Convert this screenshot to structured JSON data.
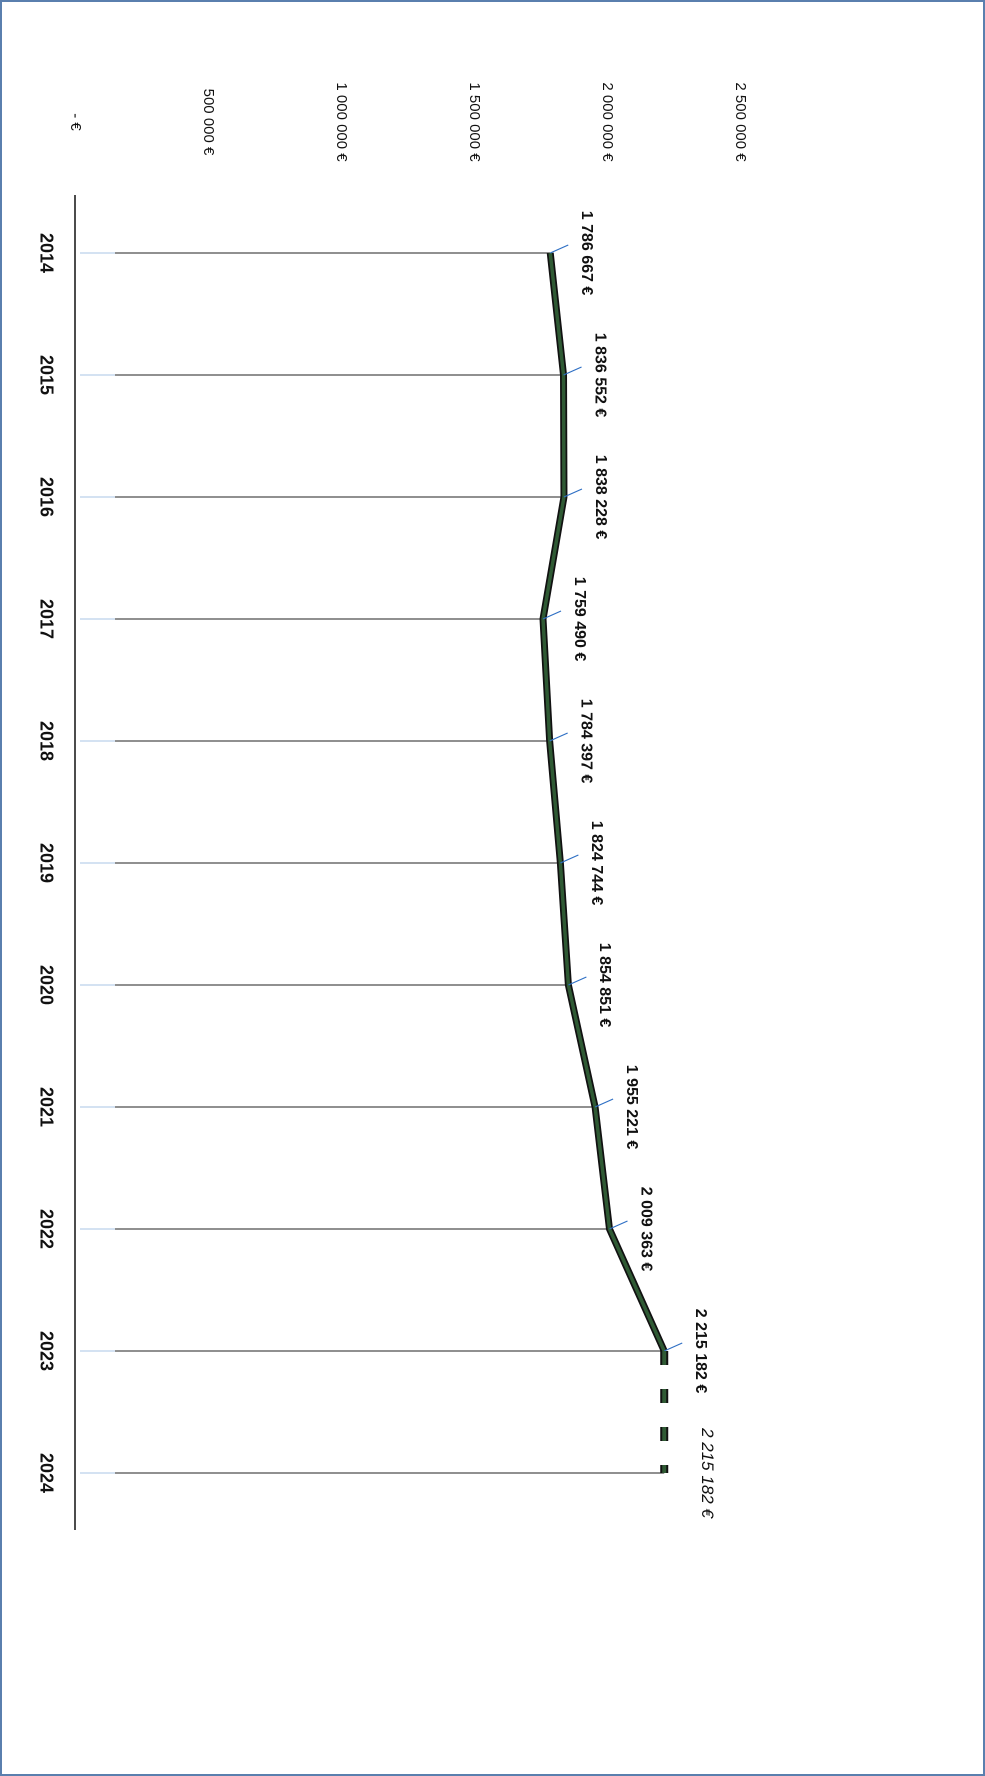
{
  "chart_data": {
    "type": "line",
    "categories": [
      "2014",
      "2015",
      "2016",
      "2017",
      "2018",
      "2019",
      "2020",
      "2021",
      "2022",
      "2023",
      "2024"
    ],
    "series": [
      {
        "color": "#2f5a34",
        "line_style": "solid",
        "values": [
          1786667,
          1836552,
          1838228,
          1759490,
          1784397,
          1824744,
          1854851,
          1955221,
          2009363,
          2215182,
          null
        ],
        "value_labels": [
          "1 786 667 €",
          "1 836 552 €",
          "1 838 228 €",
          "1 759 490 €",
          "1 784 397 €",
          "1 824 744 €",
          "1 854 851 €",
          "1 955 221 €",
          "2 009 363 €",
          "2 215 182 €",
          null
        ]
      },
      {
        "color": "#2f5a34",
        "line_style": "dashed",
        "values": [
          null,
          null,
          null,
          null,
          null,
          null,
          null,
          null,
          null,
          2215182,
          2215182
        ],
        "value_labels": [
          null,
          null,
          null,
          null,
          null,
          null,
          null,
          null,
          null,
          null,
          "2 215 182 €"
        ]
      }
    ],
    "ylim": [
      0,
      2500000
    ],
    "yticks": [
      {
        "value": 0,
        "label": "-  €"
      },
      {
        "value": 500000,
        "label": "500 000 €"
      },
      {
        "value": 1000000,
        "label": "1 000 000 €"
      },
      {
        "value": 1500000,
        "label": "1 500 000 €"
      },
      {
        "value": 2000000,
        "label": "2 000 000 €"
      },
      {
        "value": 2500000,
        "label": "2 500 000 €"
      }
    ],
    "grid": false
  }
}
